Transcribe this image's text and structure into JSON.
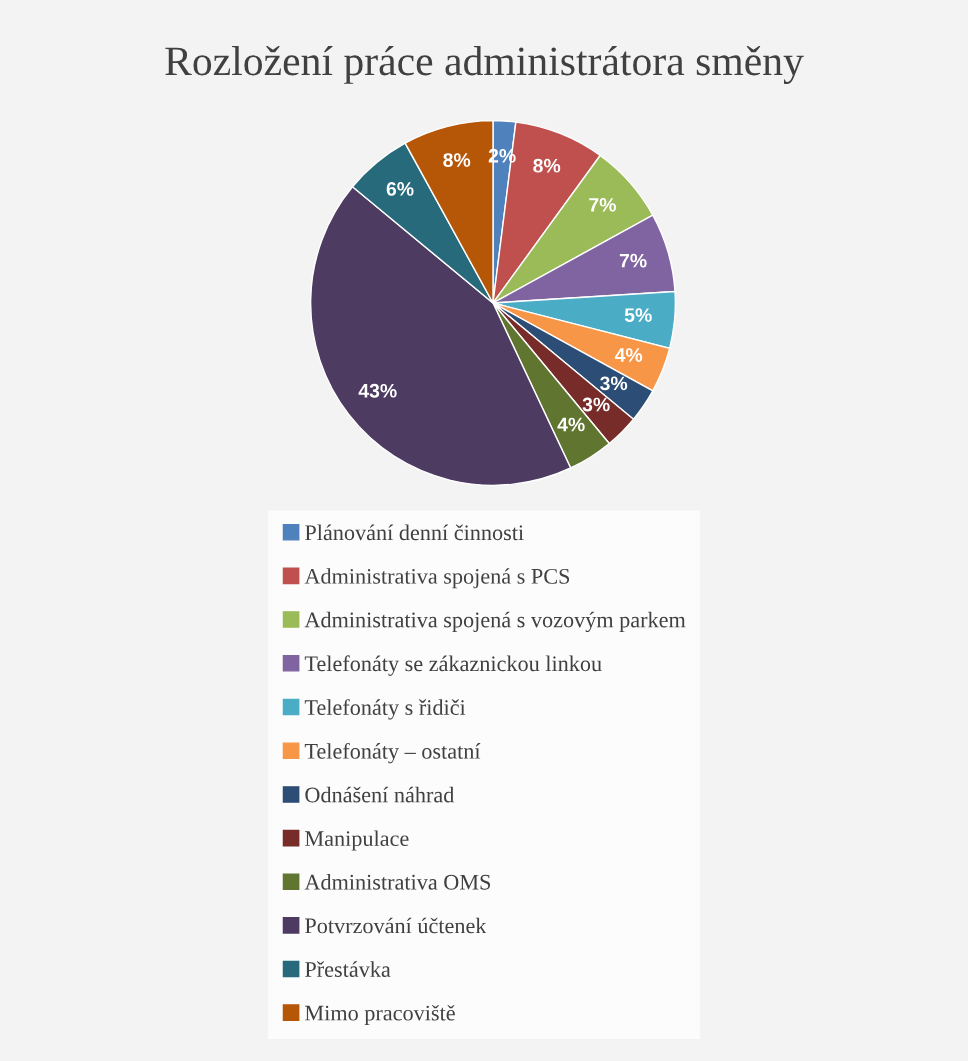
{
  "chart_data": {
    "type": "pie",
    "title": "Rozložení práce administrátora směny",
    "categories": [
      "Plánování denní činnosti",
      "Administrativa spojená s PCS",
      "Administrativa spojená s vozovým parkem",
      "Telefonáty se zákaznickou linkou",
      "Telefonáty s řidiči",
      "Telefonáty – ostatní",
      "Odnášení náhrad",
      "Manipulace",
      "Administrativa OMS",
      "Potvrzování účtenek",
      "Přestávka",
      "Mimo pracoviště"
    ],
    "values": [
      2,
      8,
      7,
      7,
      5,
      4,
      3,
      3,
      4,
      43,
      6,
      8
    ],
    "value_labels": [
      "2%",
      "8%",
      "7%",
      "7%",
      "5%",
      "4%",
      "3%",
      "3%",
      "4%",
      "43%",
      "6%",
      "8%"
    ],
    "colors": [
      "#4f81bd",
      "#c0504d",
      "#9bbb59",
      "#8064a2",
      "#4bacc6",
      "#f79646",
      "#2c4d75",
      "#772c2a",
      "#5f7530",
      "#4d3b62",
      "#276a7c",
      "#b65708"
    ],
    "legend": "bottom"
  }
}
